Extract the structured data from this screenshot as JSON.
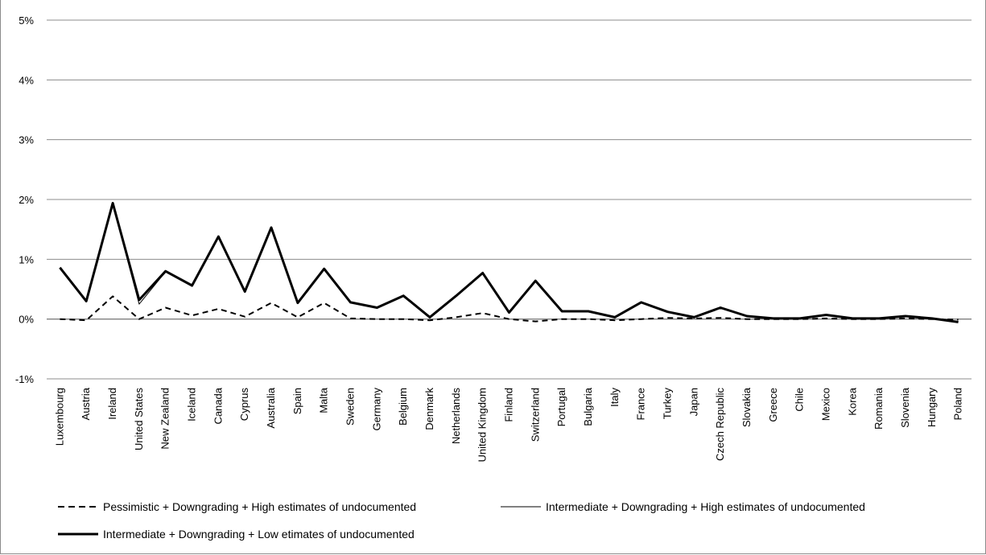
{
  "chart_data": {
    "type": "line",
    "title": "",
    "xlabel": "",
    "ylabel": "",
    "y_ticks": [
      "5%",
      "4%",
      "3%",
      "2%",
      "1%",
      "0%",
      "-1%"
    ],
    "ylim": [
      -1,
      5
    ],
    "grid": true,
    "legend_position": "bottom",
    "categories": [
      "Luxembourg",
      "Austria",
      "Ireland",
      "United States",
      "New Zealand",
      "Iceland",
      "Canada",
      "Cyprus",
      "Australia",
      "Spain",
      "Malta",
      "Sweden",
      "Germany",
      "Belgium",
      "Denmark",
      "Netherlands",
      "United Kingdom",
      "Finland",
      "Switzerland",
      "Portugal",
      "Bulgaria",
      "Italy",
      "France",
      "Turkey",
      "Japan",
      "Czech Republic",
      "Slovakia",
      "Greece",
      "Chile",
      "Mexico",
      "Korea",
      "Romania",
      "Slovenia",
      "Hungary",
      "Poland"
    ],
    "series": [
      {
        "name": "Pessimistic + Downgrading + High estimates of undocumented",
        "style": "dashed",
        "values": [
          0.0,
          -0.02,
          0.38,
          0.0,
          0.19,
          0.06,
          0.17,
          0.04,
          0.27,
          0.03,
          0.27,
          0.01,
          0.0,
          0.0,
          -0.02,
          0.03,
          0.1,
          0.0,
          -0.04,
          0.0,
          0.0,
          -0.02,
          0.0,
          0.02,
          0.01,
          0.02,
          0.0,
          0.0,
          0.0,
          0.01,
          0.0,
          0.0,
          0.01,
          0.0,
          -0.01
        ]
      },
      {
        "name": "Intermediate + Downgrading + High estimates of undocumented",
        "style": "thin",
        "values": [
          0.85,
          0.3,
          1.92,
          0.25,
          0.79,
          0.56,
          1.37,
          0.46,
          1.52,
          0.27,
          0.84,
          0.27,
          0.19,
          0.38,
          0.03,
          0.39,
          0.76,
          0.11,
          0.63,
          0.13,
          0.13,
          0.03,
          0.28,
          0.12,
          0.03,
          0.18,
          0.05,
          0.01,
          0.01,
          0.07,
          0.01,
          0.01,
          0.04,
          0.01,
          -0.04
        ]
      },
      {
        "name": "Intermediate + Downgrading + Low etimates of undocumented",
        "style": "thick",
        "values": [
          0.86,
          0.3,
          1.94,
          0.32,
          0.8,
          0.56,
          1.38,
          0.46,
          1.53,
          0.27,
          0.84,
          0.28,
          0.19,
          0.39,
          0.03,
          0.39,
          0.77,
          0.11,
          0.64,
          0.13,
          0.13,
          0.03,
          0.28,
          0.12,
          0.03,
          0.19,
          0.05,
          0.01,
          0.01,
          0.07,
          0.01,
          0.01,
          0.05,
          0.01,
          -0.05
        ]
      }
    ]
  },
  "colors": {
    "line": "#000000",
    "grid": "#8c8c8c",
    "axis": "#7f7f7f"
  }
}
